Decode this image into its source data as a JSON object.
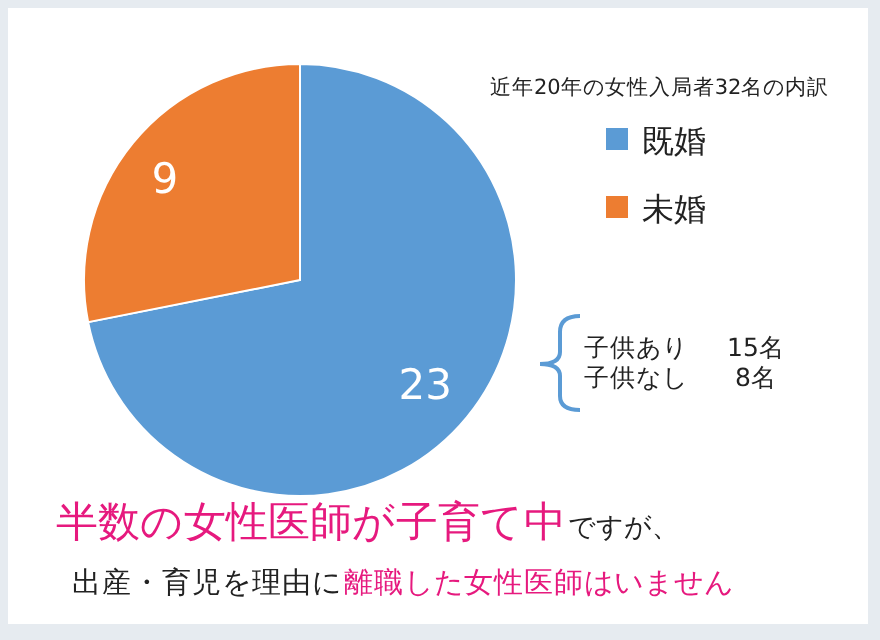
{
  "chart_data": {
    "type": "pie",
    "title": "近年20年の女性入局者32名の内訳",
    "categories": [
      "既婚",
      "未婚"
    ],
    "values": [
      23,
      9
    ],
    "colors": [
      "#5b9bd5",
      "#ed7d31"
    ],
    "data_labels": true,
    "legend": "right",
    "annotations": [
      "子供あり",
      "15名",
      "子供なし",
      "8名",
      "半数の女性医師が子育て中",
      "ですが、",
      "出産・育児を理由に",
      "離職した女性医師はいません"
    ]
  }
}
